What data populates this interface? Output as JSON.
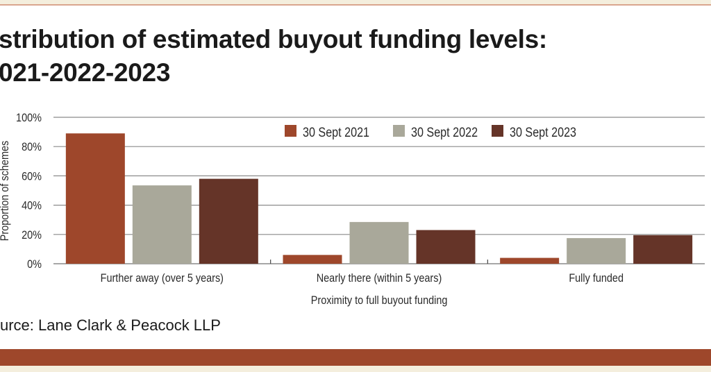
{
  "title_line1": "stribution of estimated buyout funding levels:",
  "title_line2": "021-2022-2023",
  "source": "urce: Lane Clark & Peacock LLP",
  "colors": {
    "s2021": "#9e472b",
    "s2022": "#a9a89a",
    "s2023": "#653428",
    "band": "#9e472b",
    "beige": "#f4eedd",
    "grid": "#8a8a8a"
  },
  "chart_data": {
    "type": "bar",
    "title": "",
    "xlabel": "Proximity to full buyout funding",
    "ylabel": "Proportion of schemes",
    "ylim": [
      0,
      100
    ],
    "yticks": [
      "0%",
      "20%",
      "40%",
      "60%",
      "80%",
      "100%"
    ],
    "grid": true,
    "legend_position": "top",
    "categories": [
      "Further away (over 5 years)",
      "Nearly there (within 5 years)",
      "Fully funded"
    ],
    "series": [
      {
        "name": "30 Sept 2021",
        "values": [
          89,
          6,
          4
        ]
      },
      {
        "name": "30 Sept 2022",
        "values": [
          53.5,
          28.5,
          17.5
        ]
      },
      {
        "name": "30 Sept 2023",
        "values": [
          58,
          23,
          19.5
        ]
      }
    ]
  }
}
